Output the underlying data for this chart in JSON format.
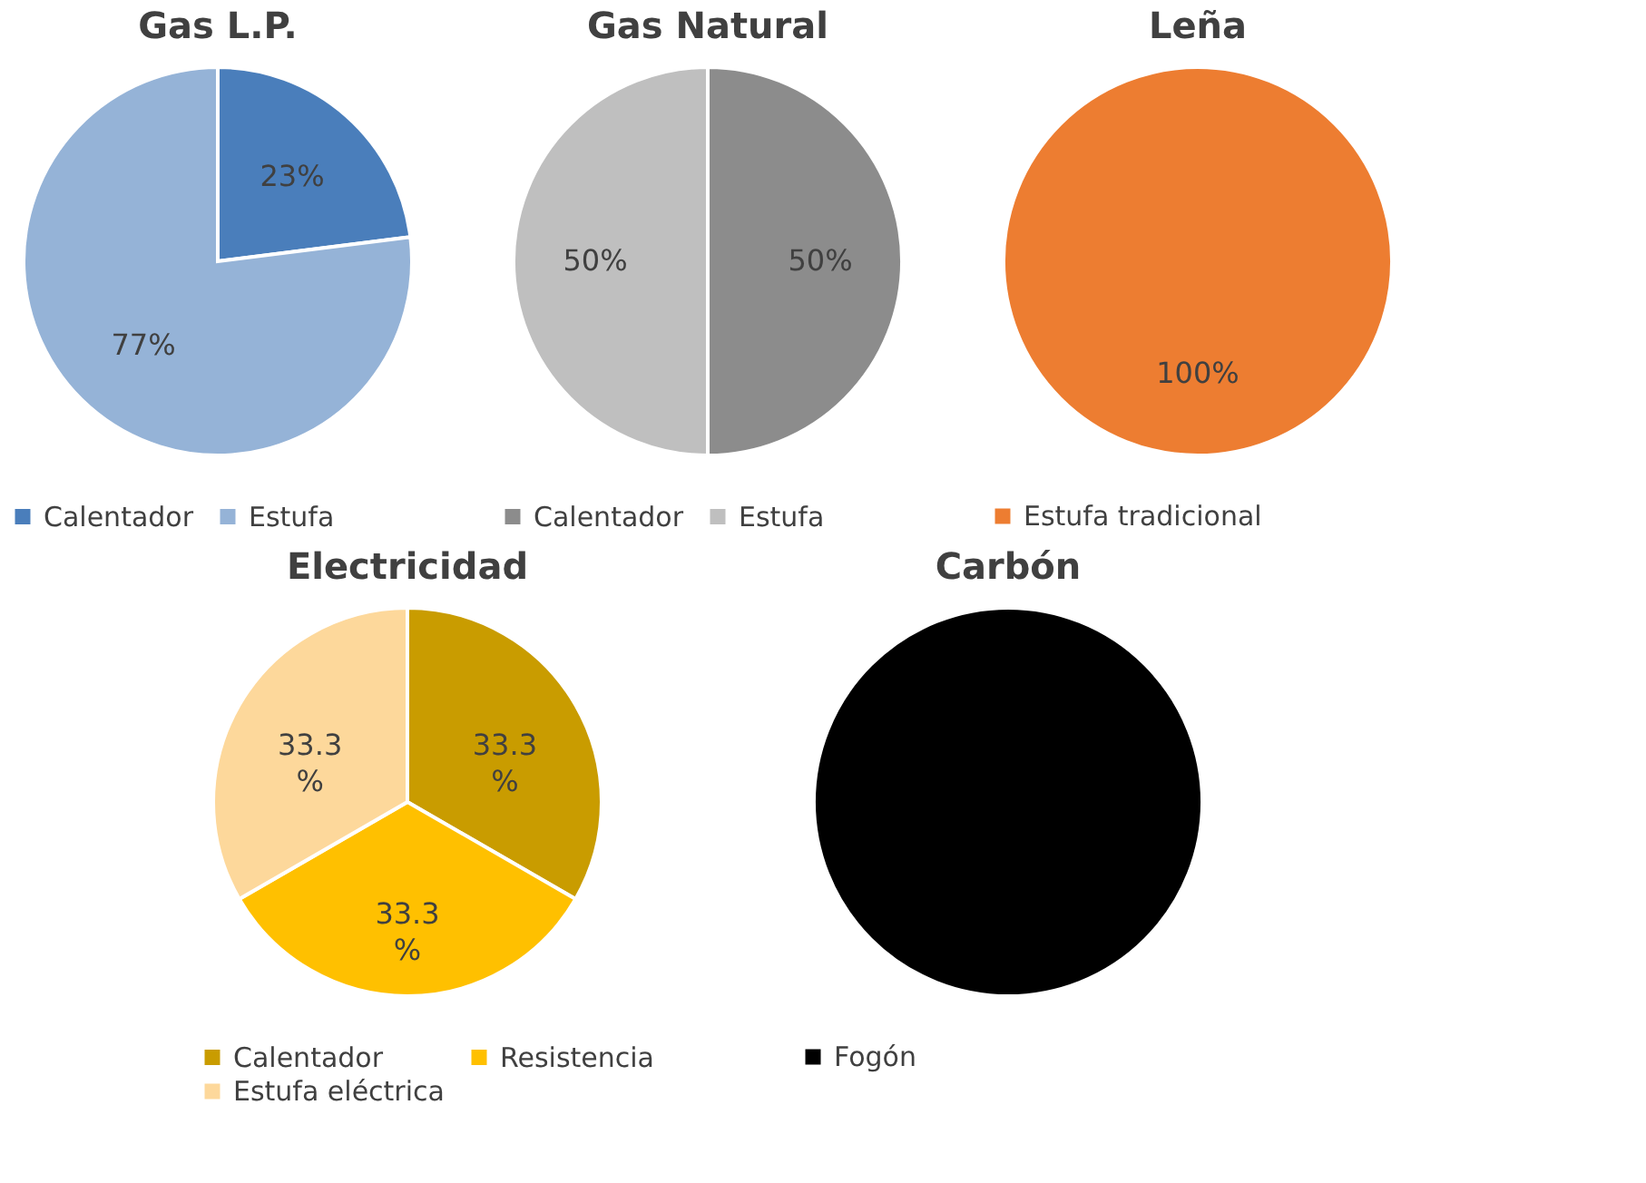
{
  "chart_data": [
    {
      "type": "pie",
      "title": "Gas L.P.",
      "categories": [
        "Calentador",
        "Estufa"
      ],
      "values": [
        23,
        77
      ],
      "colors": [
        "#4a7ebb",
        "#95b3d7"
      ],
      "value_labels": [
        "23%",
        "77%"
      ],
      "legend": "bottom"
    },
    {
      "type": "pie",
      "title": "Gas Natural",
      "categories": [
        "Calentador",
        "Estufa"
      ],
      "values": [
        50,
        50
      ],
      "colors": [
        "#8c8c8c",
        "#bfbfbf"
      ],
      "value_labels": [
        "50%",
        "50%"
      ],
      "legend": "bottom"
    },
    {
      "type": "pie",
      "title": "Leña",
      "categories": [
        "Estufa tradicional"
      ],
      "values": [
        100
      ],
      "colors": [
        "#ed7d31"
      ],
      "value_labels": [
        "100%"
      ],
      "legend": "bottom"
    },
    {
      "type": "pie",
      "title": "Electricidad",
      "categories": [
        "Calentador",
        "Resistencia",
        "Estufa eléctrica"
      ],
      "values": [
        33.3,
        33.3,
        33.3
      ],
      "colors": [
        "#c99c00",
        "#ffc000",
        "#fdd89b"
      ],
      "value_labels": [
        "33.3 %",
        "33.3 %",
        "33.3 %"
      ],
      "legend": "bottom"
    },
    {
      "type": "pie",
      "title": "Carbón",
      "categories": [
        "Fogón"
      ],
      "values": [
        100
      ],
      "colors": [
        "#000000"
      ],
      "value_labels": [
        null
      ],
      "legend": "bottom"
    }
  ]
}
